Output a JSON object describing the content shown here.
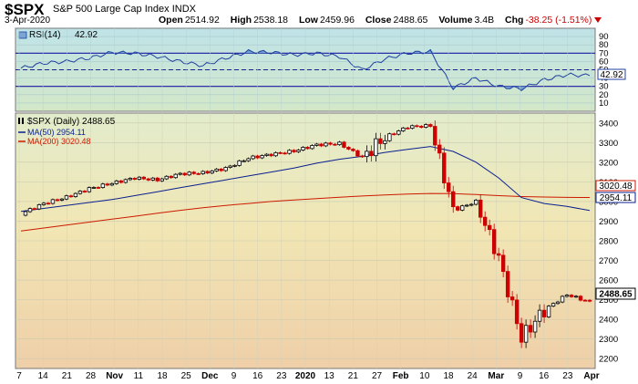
{
  "header": {
    "symbol": "$SPX",
    "description": "S&P 500 Large Cap Index",
    "exchange": "INDX",
    "date": "3-Apr-2020",
    "open_label": "Open",
    "open": "2514.92",
    "high_label": "High",
    "high": "2538.18",
    "low_label": "Low",
    "low": "2459.96",
    "close_label": "Close",
    "close": "2488.65",
    "volume_label": "Volume",
    "volume": "3.4B",
    "chg_label": "Chg",
    "chg": "-38.25 (-1.51%)"
  },
  "rsi_panel": {
    "label": "RSI(14)",
    "value": "42.92",
    "value_num": 42.92,
    "ticks": [
      90,
      80,
      70,
      60,
      50,
      40,
      30,
      20,
      10
    ],
    "overbought": 70,
    "oversold": 30,
    "midline": 50
  },
  "price_panel": {
    "legend_price": "$SPX (Daily) 2488.65",
    "legend_ma50": "MA(50) 2954.11",
    "legend_ma200": "MA(200) 3020.48",
    "ticks": [
      3400,
      3300,
      3200,
      3100,
      3000,
      2900,
      2800,
      2700,
      2600,
      2500,
      2400,
      2300,
      2200
    ],
    "last_price_tag": "2488.65",
    "ma50_tag": "2954.11",
    "ma200_tag": "3020.48",
    "ylim": [
      2150,
      3450
    ]
  },
  "x_axis": {
    "labels": [
      "7",
      "14",
      "21",
      "28",
      "Nov",
      "11",
      "18",
      "25",
      "Dec",
      "9",
      "16",
      "23",
      "2020",
      "13",
      "21",
      "27",
      "Feb",
      "10",
      "18",
      "24",
      "Mar",
      "9",
      "16",
      "23",
      "Apr"
    ],
    "bold": [
      "Nov",
      "Dec",
      "2020",
      "Feb",
      "Mar",
      "Apr"
    ]
  },
  "colors": {
    "up": "#000000",
    "down": "#cc0000",
    "ma50": "#0a1f8f",
    "ma200": "#cc1a00",
    "rsi_line": "#1f3f9f",
    "rsi_fill": "#6fa0d0",
    "rsi_bands": "#1a1aa0"
  },
  "chart_data": [
    {
      "type": "line",
      "title": "RSI(14)",
      "ylim": [
        0,
        100
      ],
      "x": [
        "2019-10-07",
        "2019-10-14",
        "2019-10-21",
        "2019-10-28",
        "2019-11-04",
        "2019-11-11",
        "2019-11-18",
        "2019-11-25",
        "2019-12-02",
        "2019-12-09",
        "2019-12-16",
        "2019-12-23",
        "2020-01-02",
        "2020-01-13",
        "2020-01-21",
        "2020-01-27",
        "2020-02-03",
        "2020-02-10",
        "2020-02-18",
        "2020-02-24",
        "2020-03-02",
        "2020-03-09",
        "2020-03-16",
        "2020-03-23",
        "2020-03-30",
        "2020-04-03"
      ],
      "series": [
        {
          "name": "RSI(14)",
          "values": [
            52,
            58,
            60,
            64,
            71,
            70,
            66,
            60,
            55,
            64,
            72,
            71,
            68,
            70,
            66,
            50,
            63,
            70,
            72,
            28,
            40,
            30,
            27,
            38,
            44,
            42.92
          ]
        }
      ]
    },
    {
      "type": "line",
      "title": "$SPX (Daily) 2488.65",
      "ylim": [
        2150,
        3450
      ],
      "x": [
        "2019-10-07",
        "2019-10-14",
        "2019-10-21",
        "2019-10-28",
        "2019-11-04",
        "2019-11-11",
        "2019-11-18",
        "2019-11-25",
        "2019-12-02",
        "2019-12-09",
        "2019-12-16",
        "2019-12-23",
        "2020-01-02",
        "2020-01-13",
        "2020-01-21",
        "2020-01-27",
        "2020-02-03",
        "2020-02-10",
        "2020-02-18",
        "2020-02-24",
        "2020-03-02",
        "2020-03-09",
        "2020-03-16",
        "2020-03-23",
        "2020-03-30",
        "2020-04-03"
      ],
      "series": [
        {
          "name": "$SPX (Daily)",
          "values": [
            2938,
            2990,
            3022,
            3066,
            3093,
            3120,
            3110,
            3141,
            3146,
            3169,
            3221,
            3240,
            3257,
            3289,
            3295,
            3225,
            3327,
            3380,
            3386,
            2954,
            3000,
            2711,
            2305,
            2448,
            2526,
            2488.65
          ]
        },
        {
          "name": "MA(50)",
          "values": [
            2950,
            2965,
            2980,
            2995,
            3010,
            3030,
            3050,
            3070,
            3090,
            3110,
            3130,
            3150,
            3170,
            3195,
            3215,
            3230,
            3250,
            3265,
            3280,
            3255,
            3200,
            3120,
            3020,
            2990,
            2975,
            2954.11
          ]
        },
        {
          "name": "MA(200)",
          "values": [
            2850,
            2865,
            2880,
            2895,
            2910,
            2925,
            2940,
            2955,
            2968,
            2980,
            2990,
            3000,
            3008,
            3015,
            3022,
            3028,
            3033,
            3038,
            3041,
            3040,
            3036,
            3030,
            3025,
            3023,
            3021,
            3020.48
          ]
        }
      ]
    }
  ]
}
